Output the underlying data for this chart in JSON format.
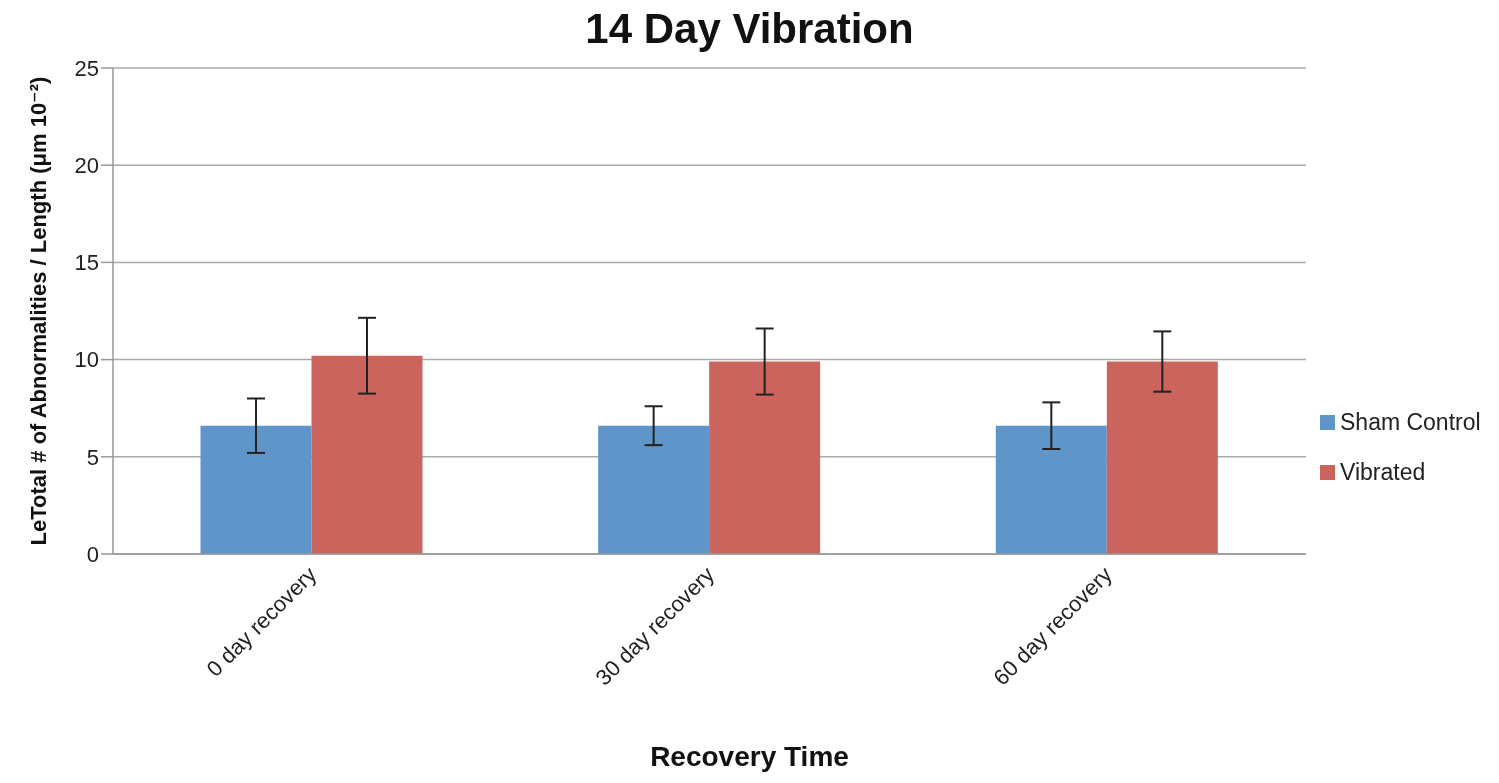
{
  "chart_data": {
    "type": "bar",
    "title": "14 Day Vibration",
    "xlabel": "Recovery Time",
    "ylabel": "LeTotal # of Abnormalities / Length (μm 10⁻²)",
    "categories": [
      "0 day recovery",
      "30 day recovery",
      "60 day recovery"
    ],
    "series": [
      {
        "name": "Sham Control",
        "color": "#5f95c9",
        "values": [
          6.6,
          6.6,
          6.6
        ],
        "errors": [
          1.4,
          1.0,
          1.2
        ]
      },
      {
        "name": "Vibrated",
        "color": "#cb645d",
        "values": [
          10.2,
          9.9,
          9.9
        ],
        "errors": [
          1.95,
          1.7,
          1.55
        ]
      }
    ],
    "ylim": [
      0,
      25
    ],
    "yticks": [
      0,
      5,
      10,
      15,
      20,
      25
    ],
    "grid": "y",
    "legend": "right"
  }
}
